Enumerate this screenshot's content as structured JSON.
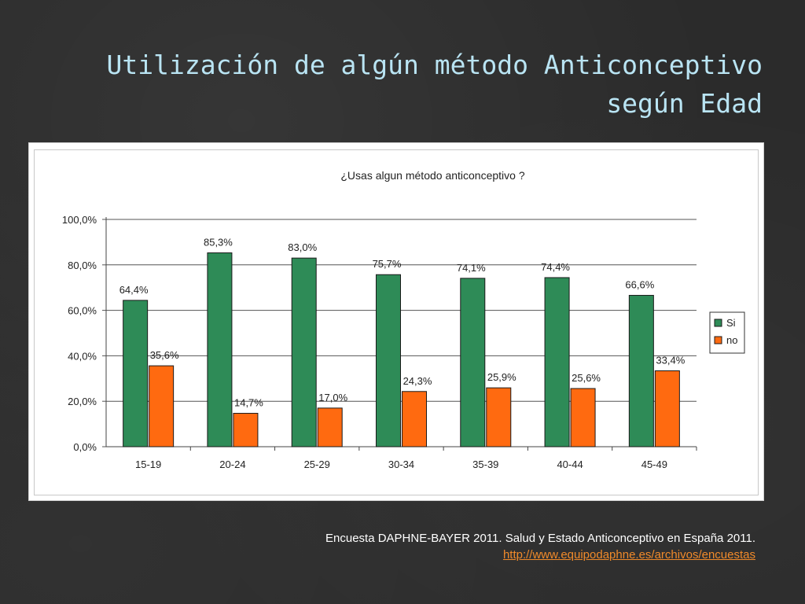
{
  "slide": {
    "title_line1": "Utilización de algún método Anticonceptivo",
    "title_line2": "según Edad",
    "source_text": "Encuesta DAPHNE-BAYER 2011. Salud y Estado Anticonceptivo en España 2011.",
    "source_link": "http://www.equipodaphne.es/archivos/encuestas"
  },
  "chart_data": {
    "type": "bar",
    "title": "¿Usas algun método anticonceptivo ?",
    "categories": [
      "15-19",
      "20-24",
      "25-29",
      "30-34",
      "35-39",
      "40-44",
      "45-49"
    ],
    "series": [
      {
        "name": "Si",
        "color": "#2e8b57",
        "values": [
          64.4,
          85.3,
          83.0,
          75.7,
          74.1,
          74.4,
          66.6
        ],
        "labels": [
          "64,4%",
          "85,3%",
          "83,0%",
          "75,7%",
          "74,1%",
          "74,4%",
          "66,6%"
        ]
      },
      {
        "name": "no",
        "color": "#ff6a10",
        "values": [
          35.6,
          14.7,
          17.0,
          24.3,
          25.9,
          25.6,
          33.4
        ],
        "labels": [
          "35,6%",
          "14,7%",
          "17,0%",
          "24,3%",
          "25,9%",
          "25,6%",
          "33,4%"
        ]
      }
    ],
    "ylim": [
      0,
      100
    ],
    "yticks": [
      0,
      20,
      40,
      60,
      80,
      100
    ],
    "ytick_labels": [
      "0,0%",
      "20,0%",
      "40,0%",
      "60,0%",
      "80,0%",
      "100,0%"
    ],
    "grid": true,
    "legend_position": "right"
  }
}
